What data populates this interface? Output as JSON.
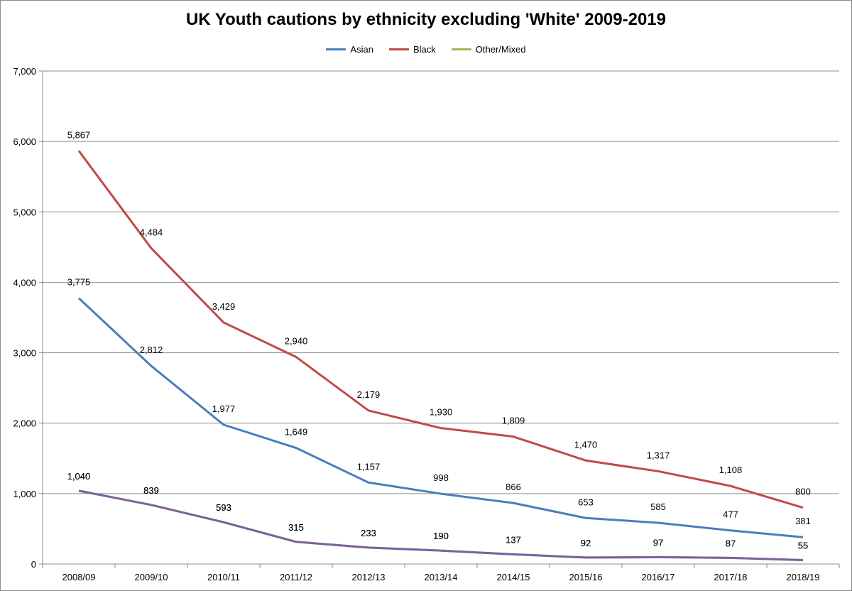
{
  "chart_data": {
    "type": "line",
    "title": "UK Youth cautions by ethnicity excluding 'White' 2009-2019",
    "xlabel": "",
    "ylabel": "",
    "ylim": [
      0,
      7000
    ],
    "yticks": [
      0,
      1000,
      2000,
      3000,
      4000,
      5000,
      6000,
      7000
    ],
    "ytick_labels": [
      "0",
      "1,000",
      "2,000",
      "3,000",
      "4,000",
      "5,000",
      "6,000",
      "7,000"
    ],
    "grid": "horizontal",
    "legend_position": "top",
    "categories": [
      "2008/09",
      "2009/10",
      "2010/11",
      "2011/12",
      "2012/13",
      "2013/14",
      "2014/15",
      "2015/16",
      "2016/17",
      "2017/18",
      "2018/19"
    ],
    "series": [
      {
        "name": "Asian",
        "color": "#4a7ebb",
        "values": [
          3775,
          2812,
          1977,
          1649,
          1157,
          998,
          866,
          653,
          585,
          477,
          381
        ],
        "labels": [
          "3,775",
          "2,812",
          "1,977",
          "1,649",
          "1,157",
          "998",
          "866",
          "653",
          "585",
          "477",
          "381"
        ]
      },
      {
        "name": "Black",
        "color": "#be4b48",
        "values": [
          5867,
          4484,
          3429,
          2940,
          2179,
          1930,
          1809,
          1470,
          1317,
          1108,
          800
        ],
        "labels": [
          "5,867",
          "4,484",
          "3,429",
          "2,940",
          "2,179",
          "1,930",
          "1,809",
          "1,470",
          "1,317",
          "1,108",
          "800"
        ]
      },
      {
        "name": "Other/Mixed",
        "color": "#98b954",
        "values": [
          1040,
          839,
          593,
          315,
          233,
          190,
          137,
          92,
          97,
          87,
          55
        ],
        "labels": [
          "1,040",
          "839",
          "593",
          "315",
          "233",
          "190",
          "137",
          "92",
          "97",
          "87",
          "55"
        ]
      },
      {
        "color": "#7d60a0",
        "values": [
          1040,
          839,
          593,
          315,
          233,
          190,
          137,
          92,
          97,
          87,
          55
        ],
        "labels": [
          "1,040",
          "839",
          "593",
          "315",
          "233",
          "190",
          "137",
          "92",
          "97",
          "87",
          "55"
        ]
      }
    ]
  }
}
